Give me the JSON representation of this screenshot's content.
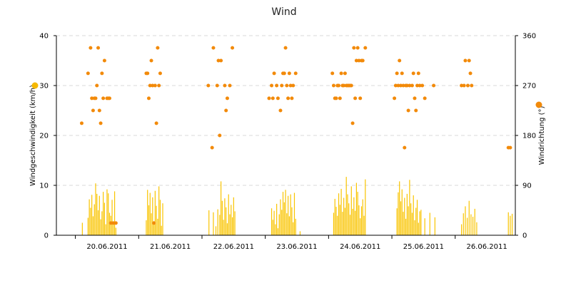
{
  "chart_data": {
    "type": "bar",
    "title": "Wind",
    "ylabel_left": "Windgeschwindigkeit (km/h)",
    "ylabel_right": "Windrichtung (°)",
    "yleft_range": [
      0,
      40
    ],
    "yleft_ticks": [
      "0",
      "10",
      "20",
      "30",
      "40"
    ],
    "yright_range": [
      0,
      360
    ],
    "yright_ticks": [
      "0",
      "90",
      "180",
      "270",
      "360"
    ],
    "x_range_days": [
      -0.3,
      6.95
    ],
    "x_tick_labels": [
      "20.06.2011",
      "21.06.2011",
      "22.06.2011",
      "23.06.2011",
      "24.06.2011",
      "25.06.2011",
      "26.06.2011"
    ],
    "grid": "horizontal dashed",
    "colors": {
      "speed_bars": "#F9C400",
      "direction_points": "#F28A0A",
      "legend_speed": "#F5B800",
      "legend_direction": "#F28A0A",
      "grid": "#d8d8d8",
      "axis": "#000000"
    },
    "series": [
      {
        "type": "bar",
        "axis": "left",
        "points": [
          [
            0.11,
            2.5
          ],
          [
            0.2,
            3.5
          ],
          [
            0.22,
            7.2
          ],
          [
            0.24,
            5.5
          ],
          [
            0.26,
            8.1
          ],
          [
            0.28,
            3.8
          ],
          [
            0.3,
            6.2
          ],
          [
            0.32,
            10.4
          ],
          [
            0.34,
            8.3
          ],
          [
            0.36,
            5.0
          ],
          [
            0.38,
            7.9
          ],
          [
            0.4,
            3.2
          ],
          [
            0.42,
            4.8
          ],
          [
            0.44,
            8.7
          ],
          [
            0.46,
            6.5
          ],
          [
            0.48,
            2.2
          ],
          [
            0.5,
            9.2
          ],
          [
            0.52,
            8.4
          ],
          [
            0.54,
            4.5
          ],
          [
            0.56,
            3.9
          ],
          [
            0.58,
            7.1
          ],
          [
            0.6,
            2.5
          ],
          [
            0.62,
            8.8
          ],
          [
            0.64,
            1.5
          ],
          [
            1.12,
            3.0
          ],
          [
            1.14,
            9.1
          ],
          [
            1.16,
            6.0
          ],
          [
            1.18,
            8.5
          ],
          [
            1.2,
            4.4
          ],
          [
            1.22,
            7.6
          ],
          [
            1.24,
            2.8
          ],
          [
            1.26,
            8.9
          ],
          [
            1.28,
            5.9
          ],
          [
            1.3,
            3.3
          ],
          [
            1.32,
            9.8
          ],
          [
            1.34,
            7.1
          ],
          [
            1.36,
            1.9
          ],
          [
            1.38,
            6.4
          ],
          [
            2.11,
            5.0
          ],
          [
            2.18,
            4.6
          ],
          [
            2.22,
            1.8
          ],
          [
            2.25,
            5.2
          ],
          [
            2.28,
            4.1
          ],
          [
            2.3,
            10.8
          ],
          [
            2.32,
            6.9
          ],
          [
            2.34,
            3.1
          ],
          [
            2.36,
            7.4
          ],
          [
            2.38,
            5.6
          ],
          [
            2.4,
            2.4
          ],
          [
            2.42,
            8.2
          ],
          [
            2.44,
            4.2
          ],
          [
            2.46,
            6.1
          ],
          [
            2.48,
            3.6
          ],
          [
            2.5,
            7.6
          ],
          [
            2.52,
            4.8
          ],
          [
            3.1,
            5.4
          ],
          [
            3.12,
            3.1
          ],
          [
            3.14,
            4.9
          ],
          [
            3.16,
            2.2
          ],
          [
            3.18,
            6.3
          ],
          [
            3.2,
            1.4
          ],
          [
            3.22,
            4.2
          ],
          [
            3.24,
            7.2
          ],
          [
            3.26,
            5.1
          ],
          [
            3.28,
            8.7
          ],
          [
            3.3,
            6.6
          ],
          [
            3.32,
            9.1
          ],
          [
            3.34,
            4.4
          ],
          [
            3.36,
            7.9
          ],
          [
            3.38,
            3.8
          ],
          [
            3.4,
            8.2
          ],
          [
            3.42,
            5.6
          ],
          [
            3.44,
            2.6
          ],
          [
            3.46,
            8.5
          ],
          [
            3.48,
            3.3
          ],
          [
            3.55,
            0.8
          ],
          [
            4.08,
            4.5
          ],
          [
            4.1,
            7.3
          ],
          [
            4.12,
            5.7
          ],
          [
            4.14,
            3.9
          ],
          [
            4.16,
            8.4
          ],
          [
            4.18,
            6.1
          ],
          [
            4.2,
            9.3
          ],
          [
            4.22,
            4.7
          ],
          [
            4.24,
            7.5
          ],
          [
            4.26,
            5.5
          ],
          [
            4.28,
            11.7
          ],
          [
            4.3,
            8.2
          ],
          [
            4.32,
            6.4
          ],
          [
            4.34,
            4.1
          ],
          [
            4.36,
            9.8
          ],
          [
            4.38,
            5.3
          ],
          [
            4.4,
            7.6
          ],
          [
            4.42,
            4.9
          ],
          [
            4.44,
            10.5
          ],
          [
            4.46,
            8.7
          ],
          [
            4.48,
            6.0
          ],
          [
            4.5,
            3.4
          ],
          [
            4.52,
            5.8
          ],
          [
            4.54,
            7.2
          ],
          [
            4.56,
            3.9
          ],
          [
            4.58,
            11.2
          ],
          [
            5.08,
            5.4
          ],
          [
            5.1,
            8.6
          ],
          [
            5.12,
            10.8
          ],
          [
            5.14,
            6.8
          ],
          [
            5.16,
            9.2
          ],
          [
            5.18,
            4.7
          ],
          [
            5.2,
            7.5
          ],
          [
            5.22,
            3.3
          ],
          [
            5.24,
            8.3
          ],
          [
            5.26,
            5.8
          ],
          [
            5.28,
            11.1
          ],
          [
            5.3,
            6.4
          ],
          [
            5.32,
            4.5
          ],
          [
            5.34,
            8.0
          ],
          [
            5.36,
            3.0
          ],
          [
            5.38,
            5.5
          ],
          [
            5.4,
            7.1
          ],
          [
            5.42,
            2.5
          ],
          [
            5.44,
            4.8
          ],
          [
            5.46,
            5.1
          ],
          [
            5.52,
            3.4
          ],
          [
            5.6,
            4.5
          ],
          [
            5.68,
            3.6
          ],
          [
            6.1,
            2.2
          ],
          [
            6.13,
            4.4
          ],
          [
            6.16,
            5.8
          ],
          [
            6.19,
            3.5
          ],
          [
            6.22,
            6.9
          ],
          [
            6.25,
            4.2
          ],
          [
            6.28,
            3.7
          ],
          [
            6.31,
            5.3
          ],
          [
            6.34,
            2.6
          ],
          [
            6.84,
            4.6
          ],
          [
            6.87,
            3.9
          ],
          [
            6.9,
            4.3
          ]
        ]
      },
      {
        "type": "scatter",
        "axis": "right",
        "points": [
          [
            0.1,
            202
          ],
          [
            0.2,
            292
          ],
          [
            0.24,
            338
          ],
          [
            0.26,
            247
          ],
          [
            0.28,
            225
          ],
          [
            0.3,
            247
          ],
          [
            0.32,
            247
          ],
          [
            0.34,
            270
          ],
          [
            0.36,
            338
          ],
          [
            0.38,
            225
          ],
          [
            0.4,
            202
          ],
          [
            0.42,
            292
          ],
          [
            0.44,
            247
          ],
          [
            0.46,
            315
          ],
          [
            0.5,
            247
          ],
          [
            0.52,
            247
          ],
          [
            0.54,
            247
          ],
          [
            0.56,
            22
          ],
          [
            0.6,
            22
          ],
          [
            0.64,
            22
          ],
          [
            1.12,
            292
          ],
          [
            1.14,
            292
          ],
          [
            1.16,
            247
          ],
          [
            1.18,
            270
          ],
          [
            1.2,
            315
          ],
          [
            1.22,
            270
          ],
          [
            1.24,
            22
          ],
          [
            1.26,
            270
          ],
          [
            1.28,
            202
          ],
          [
            1.3,
            338
          ],
          [
            1.32,
            270
          ],
          [
            1.34,
            292
          ],
          [
            2.1,
            270
          ],
          [
            2.16,
            158
          ],
          [
            2.18,
            338
          ],
          [
            2.24,
            270
          ],
          [
            2.26,
            315
          ],
          [
            2.28,
            180
          ],
          [
            2.3,
            315
          ],
          [
            2.36,
            270
          ],
          [
            2.38,
            225
          ],
          [
            2.4,
            247
          ],
          [
            2.44,
            270
          ],
          [
            2.48,
            338
          ],
          [
            3.06,
            247
          ],
          [
            3.1,
            270
          ],
          [
            3.12,
            247
          ],
          [
            3.14,
            292
          ],
          [
            3.18,
            270
          ],
          [
            3.2,
            247
          ],
          [
            3.24,
            225
          ],
          [
            3.26,
            270
          ],
          [
            3.28,
            292
          ],
          [
            3.3,
            292
          ],
          [
            3.32,
            338
          ],
          [
            3.34,
            270
          ],
          [
            3.36,
            247
          ],
          [
            3.38,
            292
          ],
          [
            3.4,
            270
          ],
          [
            3.42,
            247
          ],
          [
            3.44,
            270
          ],
          [
            3.48,
            292
          ],
          [
            4.06,
            292
          ],
          [
            4.08,
            270
          ],
          [
            4.1,
            247
          ],
          [
            4.12,
            247
          ],
          [
            4.14,
            270
          ],
          [
            4.16,
            270
          ],
          [
            4.18,
            247
          ],
          [
            4.2,
            292
          ],
          [
            4.22,
            270
          ],
          [
            4.24,
            270
          ],
          [
            4.26,
            292
          ],
          [
            4.28,
            270
          ],
          [
            4.3,
            270
          ],
          [
            4.32,
            270
          ],
          [
            4.34,
            270
          ],
          [
            4.36,
            270
          ],
          [
            4.38,
            202
          ],
          [
            4.4,
            338
          ],
          [
            4.42,
            247
          ],
          [
            4.44,
            315
          ],
          [
            4.46,
            338
          ],
          [
            4.48,
            315
          ],
          [
            4.5,
            247
          ],
          [
            4.52,
            315
          ],
          [
            4.54,
            315
          ],
          [
            4.58,
            338
          ],
          [
            5.04,
            247
          ],
          [
            5.06,
            270
          ],
          [
            5.08,
            292
          ],
          [
            5.1,
            270
          ],
          [
            5.12,
            315
          ],
          [
            5.14,
            270
          ],
          [
            5.16,
            292
          ],
          [
            5.18,
            270
          ],
          [
            5.2,
            158
          ],
          [
            5.22,
            270
          ],
          [
            5.24,
            270
          ],
          [
            5.26,
            225
          ],
          [
            5.28,
            270
          ],
          [
            5.32,
            270
          ],
          [
            5.34,
            292
          ],
          [
            5.36,
            247
          ],
          [
            5.38,
            225
          ],
          [
            5.4,
            270
          ],
          [
            5.42,
            292
          ],
          [
            5.44,
            270
          ],
          [
            5.48,
            270
          ],
          [
            5.52,
            247
          ],
          [
            5.66,
            270
          ],
          [
            6.1,
            270
          ],
          [
            6.14,
            270
          ],
          [
            6.16,
            315
          ],
          [
            6.2,
            270
          ],
          [
            6.22,
            315
          ],
          [
            6.24,
            292
          ],
          [
            6.26,
            270
          ],
          [
            6.84,
            158
          ],
          [
            6.87,
            158
          ]
        ]
      }
    ]
  }
}
